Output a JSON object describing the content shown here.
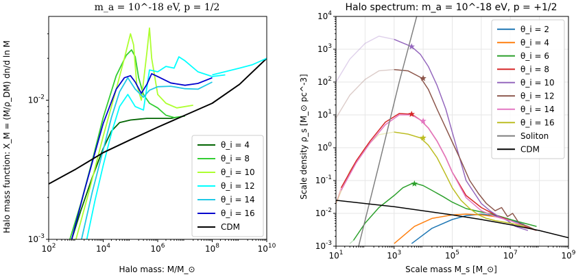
{
  "chart_data": [
    {
      "type": "line",
      "title": "m_a = 10^-18 eV, p = 1/2",
      "xlabel": "Halo mass: M/M_⊙",
      "ylabel": "Halo mass function: X_M = (M/ρ_DM) dn/d ln M",
      "xscale": "log",
      "yscale": "log",
      "xlim": [
        100,
        10000000000
      ],
      "ylim": [
        0.001,
        0.04
      ],
      "x_ticks": [
        "10^2",
        "10^4",
        "10^6",
        "10^8",
        "10^10"
      ],
      "y_ticks": [
        "10^-3",
        "10^-2"
      ],
      "legend_loc": "lower-right",
      "series": [
        {
          "name": "θ_i = 4",
          "color": "#006400",
          "width": 1.8,
          "x": [
            700,
            1500,
            4000,
            10000,
            20000,
            40000,
            100000,
            200000,
            400000,
            1000000,
            3000000,
            10000000
          ],
          "y": [
            0.001,
            0.0016,
            0.0028,
            0.0045,
            0.006,
            0.0069,
            0.0072,
            0.0073,
            0.0074,
            0.0074,
            0.0074,
            0.0077
          ]
        },
        {
          "name": "θ_i = 8",
          "color": "#32cd32",
          "width": 1.8,
          "x": [
            600,
            1500,
            4000,
            10000,
            30000,
            70000,
            110000,
            150000,
            200000,
            300000,
            500000,
            1000000,
            2000000,
            4000000,
            10000000
          ],
          "y": [
            0.001,
            0.0018,
            0.0037,
            0.0075,
            0.015,
            0.021,
            0.023,
            0.0205,
            0.0145,
            0.011,
            0.0095,
            0.0088,
            0.0078,
            0.0075,
            0.0077
          ]
        },
        {
          "name": "θ_i = 10",
          "color": "#adff2f",
          "width": 1.8,
          "x": [
            1000,
            3000,
            10000,
            30000,
            60000,
            100000,
            130000,
            170000,
            250000,
            400000,
            500000,
            600000,
            1000000,
            2000000,
            5000000,
            20000000
          ],
          "y": [
            0.001,
            0.0022,
            0.0055,
            0.012,
            0.02,
            0.03,
            0.025,
            0.013,
            0.01,
            0.022,
            0.033,
            0.02,
            0.011,
            0.0095,
            0.0088,
            0.0092
          ]
        },
        {
          "name": "θ_i = 12",
          "color": "#00ffff",
          "width": 1.8,
          "x": [
            2500,
            5000,
            10000,
            20000,
            40000,
            80000,
            150000,
            300000,
            500000,
            1000000,
            2000000,
            4000000,
            6000000,
            10000000,
            30000000,
            100000000,
            300000000
          ],
          "y": [
            0.001,
            0.0019,
            0.0034,
            0.0058,
            0.009,
            0.011,
            0.009,
            0.0085,
            0.0165,
            0.016,
            0.0175,
            0.017,
            0.0205,
            0.0192,
            0.016,
            0.0148,
            0.0152
          ]
        },
        {
          "name": "θ_i = 14",
          "color": "#1ec8e6",
          "width": 1.8,
          "x": [
            1600,
            4000,
            10000,
            20000,
            40000,
            80000,
            150000,
            300000,
            500000,
            1000000,
            3000000,
            10000000,
            30000000,
            100000000
          ],
          "y": [
            0.001,
            0.0022,
            0.0044,
            0.0075,
            0.0115,
            0.0145,
            0.012,
            0.0105,
            0.0118,
            0.0125,
            0.0126,
            0.0121,
            0.012,
            0.0135
          ]
        },
        {
          "name": "θ_i = 16",
          "color": "#0000cd",
          "width": 1.8,
          "x": [
            700,
            2000,
            5000,
            10000,
            30000,
            60000,
            100000,
            150000,
            250000,
            400000,
            600000,
            1000000,
            3000000,
            10000000,
            30000000,
            100000000
          ],
          "y": [
            0.001,
            0.0022,
            0.0042,
            0.0068,
            0.012,
            0.0145,
            0.015,
            0.0135,
            0.0112,
            0.013,
            0.0155,
            0.0148,
            0.0133,
            0.0128,
            0.0132,
            0.0145
          ]
        },
        {
          "name": "CDM",
          "color": "#000000",
          "width": 2,
          "x": [
            100,
            1000,
            10000,
            100000,
            1000000,
            10000000,
            100000000,
            1000000000,
            10000000000
          ],
          "y": [
            0.0025,
            0.0032,
            0.0042,
            0.0052,
            0.0064,
            0.0078,
            0.0095,
            0.013,
            0.02
          ]
        },
        {
          "name": "",
          "color": "#00ffff",
          "width": 1.8,
          "x": [
            100000000,
            1000000000,
            3000000000,
            10000000000
          ],
          "y": [
            0.0152,
            0.017,
            0.018,
            0.02
          ]
        }
      ],
      "legend_entries": [
        {
          "label": "θ_i = 4",
          "color": "#006400"
        },
        {
          "label": "θ_i = 8",
          "color": "#32cd32"
        },
        {
          "label": "θ_i = 10",
          "color": "#adff2f"
        },
        {
          "label": "θ_i = 12",
          "color": "#00ffff"
        },
        {
          "label": "θ_i = 14",
          "color": "#1ec8e6"
        },
        {
          "label": "θ_i = 16",
          "color": "#0000cd"
        },
        {
          "label": "CDM",
          "color": "#000000"
        }
      ]
    },
    {
      "type": "line",
      "title": "Halo spectrum: m_a = 10^-18 eV, p = +1/2",
      "xlabel": "Scale mass M_s [M_⊙]",
      "ylabel": "Scale density ρ_s [M_⊙ pc^-3]",
      "xscale": "log",
      "yscale": "log",
      "xlim": [
        10,
        1000000000
      ],
      "ylim": [
        0.001,
        10000
      ],
      "x_ticks": [
        "10^1",
        "10^3",
        "10^5",
        "10^7",
        "10^9"
      ],
      "y_ticks": [
        "10^-3",
        "10^-2",
        "10^-1",
        "10^0",
        "10^1",
        "10^2",
        "10^3",
        "10^4"
      ],
      "grid": true,
      "legend_loc": "top-right",
      "series": [
        {
          "name": "θ_i = 2",
          "color": "#1f77b4",
          "x": [
            4000,
            20000,
            100000,
            300000,
            1000000,
            3000000,
            10000000,
            30000000
          ],
          "y": [
            0.0012,
            0.0035,
            0.0065,
            0.0085,
            0.0095,
            0.0085,
            0.0065,
            0.0045
          ]
        },
        {
          "name": "θ_i = 4",
          "color": "#ff7f0e",
          "x": [
            1000,
            5000,
            20000,
            100000,
            300000,
            1000000,
            3000000,
            10000000
          ],
          "y": [
            0.0012,
            0.004,
            0.007,
            0.009,
            0.0095,
            0.009,
            0.008,
            0.006
          ]
        },
        {
          "name": "θ_i = 6",
          "color": "#2ca02c",
          "x": [
            40,
            100,
            300,
            1000,
            2000,
            4000,
            6000,
            10000,
            20000,
            50000,
            100000,
            300000,
            1000000,
            3000000,
            10000000,
            30000000,
            80000000
          ],
          "y": [
            0.0015,
            0.005,
            0.015,
            0.035,
            0.06,
            0.08,
            0.08,
            0.07,
            0.05,
            0.032,
            0.022,
            0.014,
            0.011,
            0.009,
            0.0065,
            0.005,
            0.004
          ]
        },
        {
          "name": "θ_i = 8",
          "color": "#d62728",
          "x": [
            15,
            50,
            150,
            500,
            1500,
            4000,
            8000,
            15000,
            30000,
            60000,
            100000,
            300000,
            1000000,
            3000000,
            10000000,
            30000000,
            80000000
          ],
          "y": [
            0.06,
            0.4,
            1.6,
            6,
            11,
            10.5,
            7,
            4,
            1.6,
            0.5,
            0.18,
            0.035,
            0.015,
            0.009,
            0.006,
            0.004,
            0.003
          ]
        },
        {
          "name": "θ_i = 10",
          "color": "#9467bd",
          "x": [
            1000,
            4000,
            8000,
            15000,
            30000,
            60000,
            100000,
            300000,
            1000000,
            2000000,
            4000000,
            8000000,
            15000000,
            40000000
          ],
          "y": [
            2000,
            1200,
            700,
            300,
            80,
            15,
            3,
            0.1,
            0.02,
            0.012,
            0.008,
            0.006,
            0.004,
            0.003
          ]
        },
        {
          "name": "θ_i = 12",
          "color": "#8c564b",
          "x": [
            1000,
            3000,
            8000,
            15000,
            30000,
            60000,
            100000,
            200000,
            400000,
            800000,
            1500000,
            3000000,
            5000000,
            8000000,
            12000000,
            20000000,
            40000000,
            80000000
          ],
          "y": [
            240,
            220,
            140,
            60,
            15,
            4,
            1.5,
            0.4,
            0.1,
            0.04,
            0.02,
            0.012,
            0.015,
            0.008,
            0.01,
            0.005,
            0.004,
            0.003
          ]
        },
        {
          "name": "θ_i = 14",
          "color": "#e377c2",
          "x": [
            15,
            50,
            150,
            500,
            1500,
            4000,
            8000,
            15000,
            30000,
            60000,
            100000,
            300000,
            1000000,
            3000000,
            10000000,
            30000000
          ],
          "y": [
            0.05,
            0.35,
            1.4,
            5,
            10,
            10,
            7,
            4,
            1.6,
            0.5,
            0.18,
            0.03,
            0.012,
            0.008,
            0.006,
            0.004
          ]
        },
        {
          "name": "θ_i = 16",
          "color": "#bcbd22",
          "x": [
            1000,
            3000,
            8000,
            15000,
            30000,
            60000,
            100000,
            200000,
            400000,
            800000,
            1500000,
            3000000,
            10000000,
            30000000
          ],
          "y": [
            3,
            2.6,
            2,
            1.2,
            0.5,
            0.15,
            0.06,
            0.025,
            0.014,
            0.009,
            0.007,
            0.006,
            0.005,
            0.004
          ]
        },
        {
          "name": "Soliton",
          "color": "#7f7f7f",
          "x": [
            60,
            300,
            1500,
            6000
          ],
          "y": [
            0.001,
            0.3,
            100,
            10000
          ]
        },
        {
          "name": "CDM",
          "color": "#000000",
          "x": [
            10,
            100,
            1000,
            10000,
            100000,
            1000000,
            10000000,
            100000000,
            1000000000
          ],
          "y": [
            0.025,
            0.02,
            0.016,
            0.012,
            0.009,
            0.0065,
            0.0045,
            0.003,
            0.0018
          ]
        }
      ],
      "faint_series": [
        {
          "color": "#9467bd",
          "x": [
            10,
            30,
            100,
            300,
            1000
          ],
          "y": [
            100,
            500,
            1500,
            2500,
            2000
          ]
        },
        {
          "color": "#8c564b",
          "x": [
            10,
            30,
            100,
            300,
            1000
          ],
          "y": [
            8,
            40,
            120,
            220,
            240
          ]
        },
        {
          "color": "#d62728",
          "x": [
            10,
            15
          ],
          "y": [
            0.02,
            0.06
          ]
        },
        {
          "color": "#e377c2",
          "x": [
            10,
            15
          ],
          "y": [
            0.02,
            0.05
          ]
        },
        {
          "color": "#bcbd22",
          "x": [
            10,
            30,
            100,
            300,
            1000
          ],
          "y": [
            0.02,
            0.2,
            1,
            2.5,
            3
          ]
        },
        {
          "color": "#2ca02c",
          "x": [
            30,
            40
          ],
          "y": [
            0.0012,
            0.0015
          ]
        }
      ],
      "markers": [
        {
          "color": "#9467bd",
          "x": 4000,
          "y": 1200
        },
        {
          "color": "#8c564b",
          "x": 10000,
          "y": 130
        },
        {
          "color": "#d62728",
          "x": 4000,
          "y": 10.5
        },
        {
          "color": "#e377c2",
          "x": 10000,
          "y": 6.5
        },
        {
          "color": "#bcbd22",
          "x": 10000,
          "y": 2
        },
        {
          "color": "#2ca02c",
          "x": 5000,
          "y": 0.08
        }
      ],
      "legend_entries": [
        {
          "label": "θ_i = 2",
          "color": "#1f77b4"
        },
        {
          "label": "θ_i = 4",
          "color": "#ff7f0e"
        },
        {
          "label": "θ_i = 6",
          "color": "#2ca02c"
        },
        {
          "label": "θ_i = 8",
          "color": "#d62728"
        },
        {
          "label": "θ_i = 10",
          "color": "#9467bd"
        },
        {
          "label": "θ_i = 12",
          "color": "#8c564b"
        },
        {
          "label": "θ_i = 14",
          "color": "#e377c2"
        },
        {
          "label": "θ_i = 16",
          "color": "#bcbd22"
        },
        {
          "label": "Soliton",
          "color": "#7f7f7f"
        },
        {
          "label": "CDM",
          "color": "#000000"
        }
      ]
    }
  ]
}
